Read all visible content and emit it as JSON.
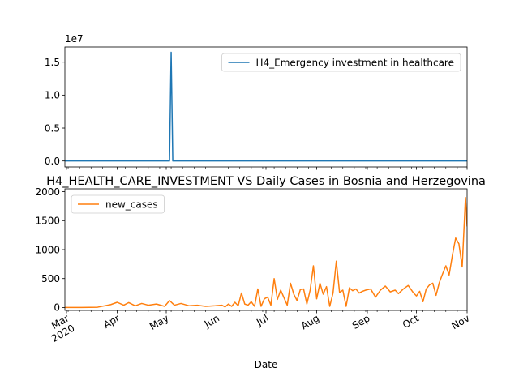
{
  "chart_data": [
    {
      "type": "line",
      "title": "",
      "xlabel": "",
      "ylabel": "",
      "y_offset_label": "1e7",
      "ylim": [
        -900000,
        17300000
      ],
      "yticks": [
        0,
        5000000,
        10000000,
        15000000
      ],
      "ytick_labels": [
        "0.0",
        "0.5",
        "1.0",
        "1.5"
      ],
      "grid": false,
      "legend": "top-right",
      "series": [
        {
          "name": "H4_Emergency investment in healthcare",
          "color": "#1f77b4",
          "x": [
            "2020-02-29",
            "2020-05-03",
            "2020-05-04",
            "2020-05-05",
            "2020-11-01"
          ],
          "y": [
            0,
            0,
            16500000,
            0,
            0
          ]
        }
      ]
    },
    {
      "type": "line",
      "title": "H4_HEALTH_CARE_INVESTMENT VS Daily Cases in Bosnia and Herzegovina",
      "xlabel": "Date",
      "ylabel": "",
      "ylim": [
        -50,
        2050
      ],
      "yticks": [
        0,
        500,
        1000,
        1500,
        2000
      ],
      "ytick_labels": [
        "0",
        "500",
        "1000",
        "1500",
        "2000"
      ],
      "xlim": [
        "2020-02-29",
        "2020-11-01"
      ],
      "xticks": [
        "2020-03-01",
        "2020-04-01",
        "2020-05-01",
        "2020-06-01",
        "2020-07-01",
        "2020-08-01",
        "2020-09-01",
        "2020-10-01",
        "2020-11-01"
      ],
      "xtick_labels": [
        "Mar\n2020",
        "Apr",
        "May",
        "Jun",
        "Jul",
        "Aug",
        "Sep",
        "Oct",
        "Nov"
      ],
      "grid": false,
      "legend": "top-left",
      "series": [
        {
          "name": "new_cases",
          "color": "#ff7f0e",
          "x": [
            "2020-02-29",
            "2020-03-10",
            "2020-03-20",
            "2020-03-28",
            "2020-04-01",
            "2020-04-05",
            "2020-04-08",
            "2020-04-12",
            "2020-04-16",
            "2020-04-20",
            "2020-04-25",
            "2020-04-30",
            "2020-05-03",
            "2020-05-06",
            "2020-05-10",
            "2020-05-15",
            "2020-05-20",
            "2020-05-25",
            "2020-05-31",
            "2020-06-04",
            "2020-06-06",
            "2020-06-08",
            "2020-06-10",
            "2020-06-12",
            "2020-06-14",
            "2020-06-16",
            "2020-06-18",
            "2020-06-20",
            "2020-06-22",
            "2020-06-24",
            "2020-06-26",
            "2020-06-28",
            "2020-06-30",
            "2020-07-02",
            "2020-07-04",
            "2020-07-06",
            "2020-07-08",
            "2020-07-10",
            "2020-07-12",
            "2020-07-14",
            "2020-07-16",
            "2020-07-18",
            "2020-07-20",
            "2020-07-22",
            "2020-07-24",
            "2020-07-26",
            "2020-07-28",
            "2020-07-30",
            "2020-08-01",
            "2020-08-03",
            "2020-08-05",
            "2020-08-07",
            "2020-08-09",
            "2020-08-11",
            "2020-08-13",
            "2020-08-15",
            "2020-08-17",
            "2020-08-19",
            "2020-08-21",
            "2020-08-23",
            "2020-08-25",
            "2020-08-27",
            "2020-08-29",
            "2020-08-31",
            "2020-09-03",
            "2020-09-06",
            "2020-09-09",
            "2020-09-12",
            "2020-09-15",
            "2020-09-18",
            "2020-09-20",
            "2020-09-23",
            "2020-09-26",
            "2020-09-29",
            "2020-10-01",
            "2020-10-03",
            "2020-10-05",
            "2020-10-07",
            "2020-10-09",
            "2020-10-11",
            "2020-10-13",
            "2020-10-15",
            "2020-10-17",
            "2020-10-19",
            "2020-10-21",
            "2020-10-23",
            "2020-10-25",
            "2020-10-27",
            "2020-10-29",
            "2020-10-31",
            "2020-11-01"
          ],
          "y": [
            0,
            0,
            5,
            50,
            90,
            40,
            85,
            30,
            70,
            40,
            60,
            20,
            120,
            40,
            70,
            30,
            40,
            20,
            30,
            40,
            10,
            60,
            20,
            90,
            30,
            250,
            60,
            40,
            100,
            20,
            320,
            20,
            150,
            180,
            40,
            500,
            140,
            300,
            170,
            40,
            420,
            230,
            120,
            310,
            320,
            60,
            300,
            720,
            150,
            420,
            230,
            360,
            20,
            250,
            800,
            260,
            300,
            20,
            340,
            290,
            320,
            250,
            280,
            300,
            320,
            180,
            300,
            370,
            270,
            300,
            240,
            320,
            380,
            260,
            200,
            280,
            100,
            320,
            390,
            420,
            210,
            430,
            580,
            720,
            560,
            900,
            1200,
            1100,
            700,
            1900,
            1400
          ]
        }
      ]
    }
  ]
}
